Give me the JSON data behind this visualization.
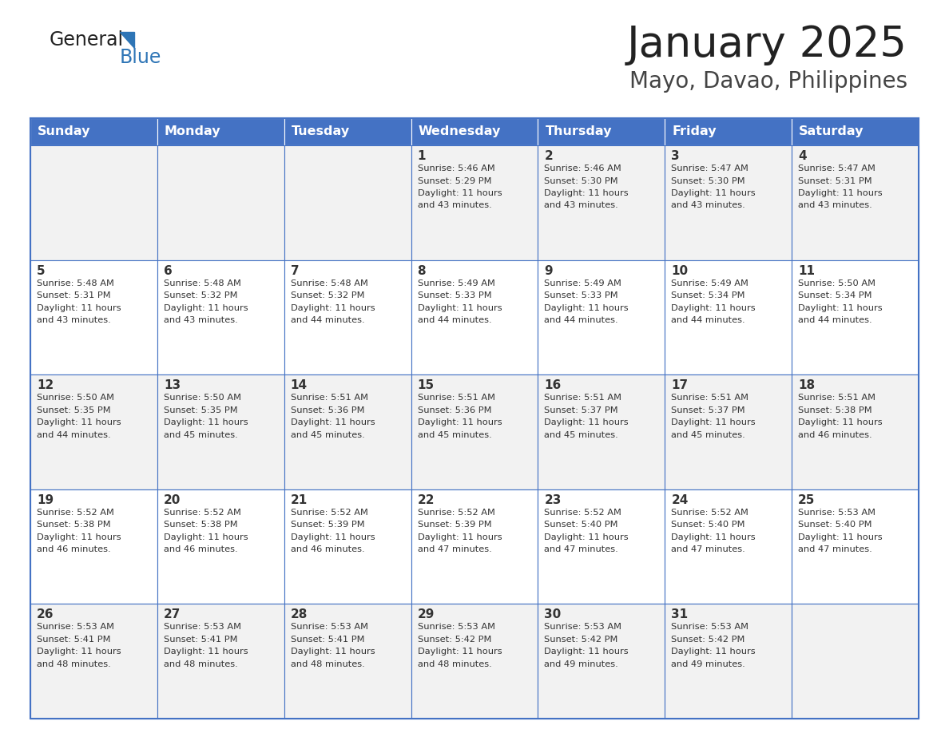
{
  "title": "January 2025",
  "subtitle": "Mayo, Davao, Philippines",
  "header_color": "#4472C4",
  "header_text_color": "#FFFFFF",
  "cell_bg_light": "#F2F2F2",
  "cell_bg_white": "#FFFFFF",
  "border_color": "#4472C4",
  "text_color": "#333333",
  "days_of_week": [
    "Sunday",
    "Monday",
    "Tuesday",
    "Wednesday",
    "Thursday",
    "Friday",
    "Saturday"
  ],
  "calendar": [
    [
      {
        "day": "",
        "sunrise": "",
        "sunset": "",
        "daylight_h": "",
        "daylight_m": ""
      },
      {
        "day": "",
        "sunrise": "",
        "sunset": "",
        "daylight_h": "",
        "daylight_m": ""
      },
      {
        "day": "",
        "sunrise": "",
        "sunset": "",
        "daylight_h": "",
        "daylight_m": ""
      },
      {
        "day": "1",
        "sunrise": "5:46 AM",
        "sunset": "5:29 PM",
        "daylight_h": "11",
        "daylight_m": "43"
      },
      {
        "day": "2",
        "sunrise": "5:46 AM",
        "sunset": "5:30 PM",
        "daylight_h": "11",
        "daylight_m": "43"
      },
      {
        "day": "3",
        "sunrise": "5:47 AM",
        "sunset": "5:30 PM",
        "daylight_h": "11",
        "daylight_m": "43"
      },
      {
        "day": "4",
        "sunrise": "5:47 AM",
        "sunset": "5:31 PM",
        "daylight_h": "11",
        "daylight_m": "43"
      }
    ],
    [
      {
        "day": "5",
        "sunrise": "5:48 AM",
        "sunset": "5:31 PM",
        "daylight_h": "11",
        "daylight_m": "43"
      },
      {
        "day": "6",
        "sunrise": "5:48 AM",
        "sunset": "5:32 PM",
        "daylight_h": "11",
        "daylight_m": "43"
      },
      {
        "day": "7",
        "sunrise": "5:48 AM",
        "sunset": "5:32 PM",
        "daylight_h": "11",
        "daylight_m": "44"
      },
      {
        "day": "8",
        "sunrise": "5:49 AM",
        "sunset": "5:33 PM",
        "daylight_h": "11",
        "daylight_m": "44"
      },
      {
        "day": "9",
        "sunrise": "5:49 AM",
        "sunset": "5:33 PM",
        "daylight_h": "11",
        "daylight_m": "44"
      },
      {
        "day": "10",
        "sunrise": "5:49 AM",
        "sunset": "5:34 PM",
        "daylight_h": "11",
        "daylight_m": "44"
      },
      {
        "day": "11",
        "sunrise": "5:50 AM",
        "sunset": "5:34 PM",
        "daylight_h": "11",
        "daylight_m": "44"
      }
    ],
    [
      {
        "day": "12",
        "sunrise": "5:50 AM",
        "sunset": "5:35 PM",
        "daylight_h": "11",
        "daylight_m": "44"
      },
      {
        "day": "13",
        "sunrise": "5:50 AM",
        "sunset": "5:35 PM",
        "daylight_h": "11",
        "daylight_m": "45"
      },
      {
        "day": "14",
        "sunrise": "5:51 AM",
        "sunset": "5:36 PM",
        "daylight_h": "11",
        "daylight_m": "45"
      },
      {
        "day": "15",
        "sunrise": "5:51 AM",
        "sunset": "5:36 PM",
        "daylight_h": "11",
        "daylight_m": "45"
      },
      {
        "day": "16",
        "sunrise": "5:51 AM",
        "sunset": "5:37 PM",
        "daylight_h": "11",
        "daylight_m": "45"
      },
      {
        "day": "17",
        "sunrise": "5:51 AM",
        "sunset": "5:37 PM",
        "daylight_h": "11",
        "daylight_m": "45"
      },
      {
        "day": "18",
        "sunrise": "5:51 AM",
        "sunset": "5:38 PM",
        "daylight_h": "11",
        "daylight_m": "46"
      }
    ],
    [
      {
        "day": "19",
        "sunrise": "5:52 AM",
        "sunset": "5:38 PM",
        "daylight_h": "11",
        "daylight_m": "46"
      },
      {
        "day": "20",
        "sunrise": "5:52 AM",
        "sunset": "5:38 PM",
        "daylight_h": "11",
        "daylight_m": "46"
      },
      {
        "day": "21",
        "sunrise": "5:52 AM",
        "sunset": "5:39 PM",
        "daylight_h": "11",
        "daylight_m": "46"
      },
      {
        "day": "22",
        "sunrise": "5:52 AM",
        "sunset": "5:39 PM",
        "daylight_h": "11",
        "daylight_m": "47"
      },
      {
        "day": "23",
        "sunrise": "5:52 AM",
        "sunset": "5:40 PM",
        "daylight_h": "11",
        "daylight_m": "47"
      },
      {
        "day": "24",
        "sunrise": "5:52 AM",
        "sunset": "5:40 PM",
        "daylight_h": "11",
        "daylight_m": "47"
      },
      {
        "day": "25",
        "sunrise": "5:53 AM",
        "sunset": "5:40 PM",
        "daylight_h": "11",
        "daylight_m": "47"
      }
    ],
    [
      {
        "day": "26",
        "sunrise": "5:53 AM",
        "sunset": "5:41 PM",
        "daylight_h": "11",
        "daylight_m": "48"
      },
      {
        "day": "27",
        "sunrise": "5:53 AM",
        "sunset": "5:41 PM",
        "daylight_h": "11",
        "daylight_m": "48"
      },
      {
        "day": "28",
        "sunrise": "5:53 AM",
        "sunset": "5:41 PM",
        "daylight_h": "11",
        "daylight_m": "48"
      },
      {
        "day": "29",
        "sunrise": "5:53 AM",
        "sunset": "5:42 PM",
        "daylight_h": "11",
        "daylight_m": "48"
      },
      {
        "day": "30",
        "sunrise": "5:53 AM",
        "sunset": "5:42 PM",
        "daylight_h": "11",
        "daylight_m": "49"
      },
      {
        "day": "31",
        "sunrise": "5:53 AM",
        "sunset": "5:42 PM",
        "daylight_h": "11",
        "daylight_m": "49"
      },
      {
        "day": "",
        "sunrise": "",
        "sunset": "",
        "daylight_h": "",
        "daylight_m": ""
      }
    ]
  ],
  "fig_width": 11.88,
  "fig_height": 9.18,
  "dpi": 100
}
